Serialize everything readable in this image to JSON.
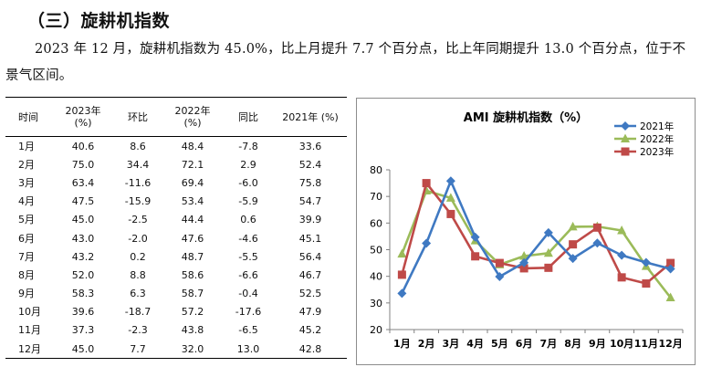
{
  "heading": "（三）旋耕机指数",
  "paragraph": "2023 年 12 月，旋耕机指数为 45.0%，比上月提升 7.7 个百分点，比上年同期提升 13.0 个百分点，位于不景气区间。",
  "table": {
    "headers": [
      [
        "时间"
      ],
      [
        "2023年",
        "(%)"
      ],
      [
        "环比"
      ],
      [
        "2022年",
        "(%)"
      ],
      [
        "同比"
      ],
      [
        "2021年 (%)"
      ]
    ],
    "rows": [
      [
        "1月",
        "40.6",
        "8.6",
        "48.4",
        "-7.8",
        "33.6"
      ],
      [
        "2月",
        "75.0",
        "34.4",
        "72.1",
        "2.9",
        "52.4"
      ],
      [
        "3月",
        "63.4",
        "-11.6",
        "69.4",
        "-6.0",
        "75.8"
      ],
      [
        "4月",
        "47.5",
        "-15.9",
        "53.4",
        "-5.9",
        "54.7"
      ],
      [
        "5月",
        "45.0",
        "-2.5",
        "44.4",
        "0.6",
        "39.9"
      ],
      [
        "6月",
        "43.0",
        "-2.0",
        "47.6",
        "-4.6",
        "45.1"
      ],
      [
        "7月",
        "43.2",
        "0.2",
        "48.7",
        "-5.5",
        "56.4"
      ],
      [
        "8月",
        "52.0",
        "8.8",
        "58.6",
        "-6.6",
        "46.7"
      ],
      [
        "9月",
        "58.3",
        "6.3",
        "58.7",
        "-0.4",
        "52.5"
      ],
      [
        "10月",
        "39.6",
        "-18.7",
        "57.2",
        "-17.6",
        "47.9"
      ],
      [
        "11月",
        "37.3",
        "-2.3",
        "43.8",
        "-6.5",
        "45.2"
      ],
      [
        "12月",
        "45.0",
        "7.7",
        "32.0",
        "13.0",
        "42.8"
      ]
    ]
  },
  "chart_data": {
    "type": "line",
    "title": "AMI 旋耕机指数（%）",
    "categories": [
      "1月",
      "2月",
      "3月",
      "4月",
      "5月",
      "6月",
      "7月",
      "8月",
      "9月",
      "10月",
      "11月",
      "12月"
    ],
    "ylim": [
      20,
      80
    ],
    "yticks": [
      20,
      30,
      40,
      50,
      60,
      70,
      80
    ],
    "grid": false,
    "legend_position": "top-right",
    "series": [
      {
        "name": "2021年",
        "color": "#3f79c2",
        "marker": "diamond",
        "values": [
          33.6,
          52.4,
          75.8,
          54.7,
          39.9,
          45.1,
          56.4,
          46.7,
          52.5,
          47.9,
          45.2,
          42.8
        ]
      },
      {
        "name": "2022年",
        "color": "#9bbb59",
        "marker": "triangle",
        "values": [
          48.4,
          72.1,
          69.4,
          53.4,
          44.4,
          47.6,
          48.7,
          58.6,
          58.7,
          57.2,
          43.8,
          32.0
        ]
      },
      {
        "name": "2023年",
        "color": "#bf4a48",
        "marker": "square",
        "values": [
          40.6,
          75.0,
          63.4,
          47.5,
          45.0,
          43.0,
          43.2,
          52.0,
          58.3,
          39.6,
          37.3,
          45.0
        ]
      }
    ]
  }
}
